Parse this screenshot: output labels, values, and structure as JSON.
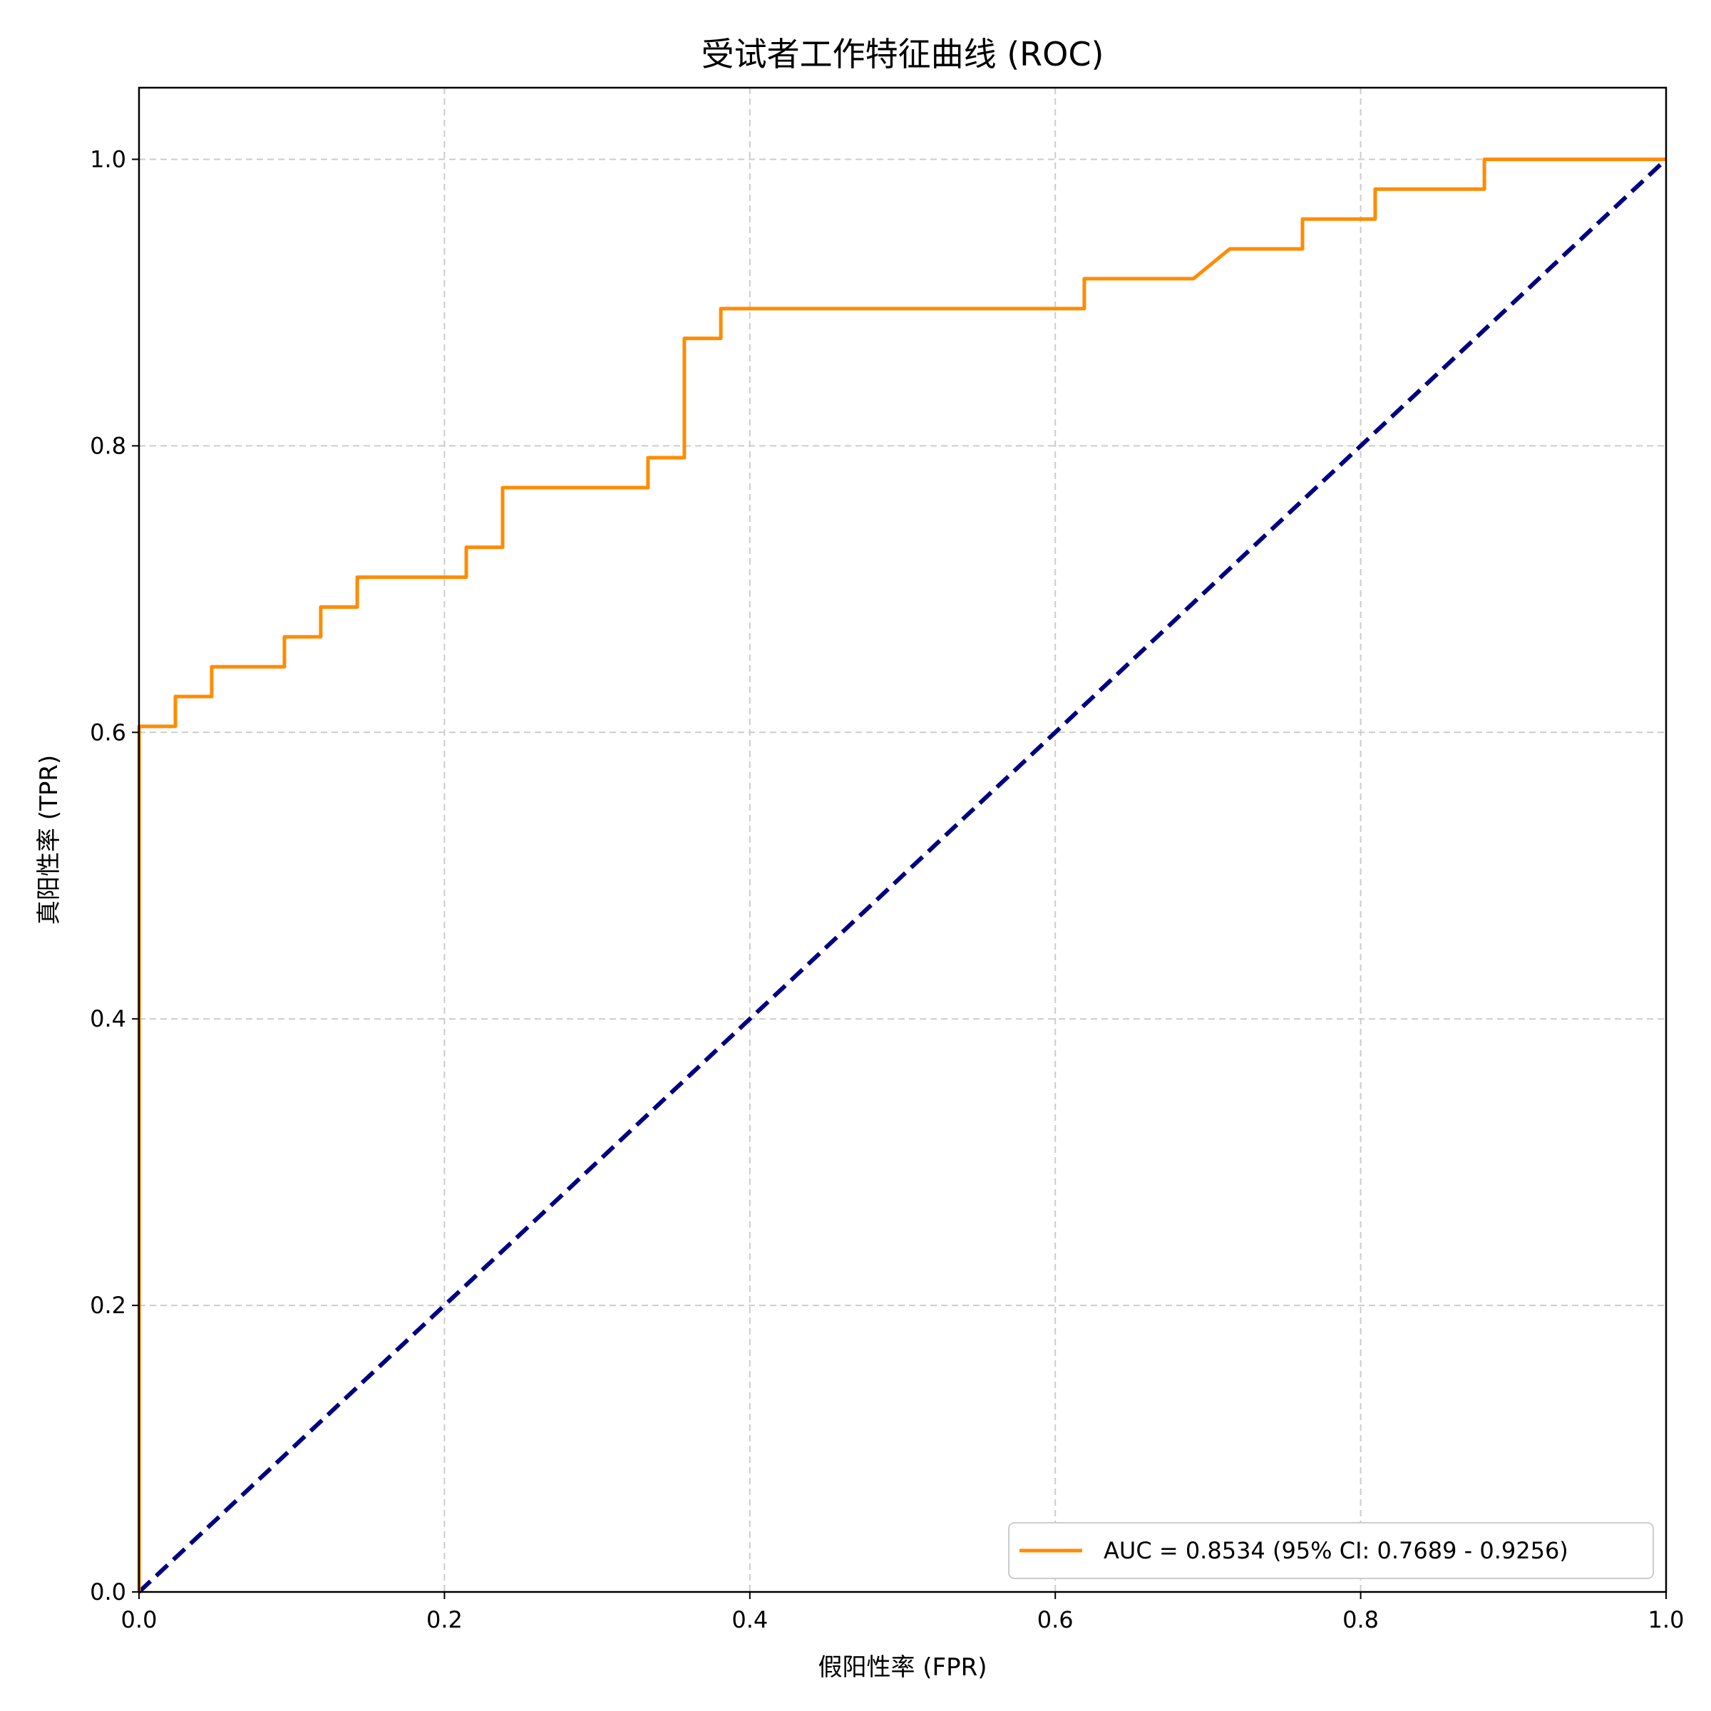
{
  "chart_data": {
    "type": "line",
    "title": "受试者工作特征曲线 (ROC)",
    "xlabel": "假阳性率 (FPR)",
    "ylabel": "真阳性率 (TPR)",
    "xlim": [
      0.0,
      1.0
    ],
    "ylim": [
      0.0,
      1.05
    ],
    "xticks": [
      "0.0",
      "0.2",
      "0.4",
      "0.6",
      "0.8",
      "1.0"
    ],
    "yticks": [
      "0.0",
      "0.2",
      "0.4",
      "0.6",
      "0.8",
      "1.0"
    ],
    "grid": true,
    "legend_position": "lower-right",
    "series": [
      {
        "name": "AUC = 0.8534 (95% CI: 0.7689 - 0.9256)",
        "color": "#ff8c00",
        "style": "solid",
        "x": [
          0.0,
          0.0,
          0.0238,
          0.0238,
          0.0476,
          0.0476,
          0.0952,
          0.0952,
          0.119,
          0.119,
          0.1429,
          0.1429,
          0.2143,
          0.2143,
          0.2381,
          0.2381,
          0.3333,
          0.3333,
          0.3571,
          0.3571,
          0.381,
          0.381,
          0.619,
          0.619,
          0.6905,
          0.7143,
          0.7619,
          0.7619,
          0.8095,
          0.8095,
          0.881,
          0.881,
          1.0
        ],
        "y": [
          0.0,
          0.6042,
          0.6042,
          0.625,
          0.625,
          0.6458,
          0.6458,
          0.6667,
          0.6667,
          0.6875,
          0.6875,
          0.7083,
          0.7083,
          0.7292,
          0.7292,
          0.7708,
          0.7708,
          0.7917,
          0.7917,
          0.875,
          0.875,
          0.8958,
          0.8958,
          0.9167,
          0.9167,
          0.9375,
          0.9375,
          0.9583,
          0.9583,
          0.9792,
          0.9792,
          1.0,
          1.0
        ]
      },
      {
        "name": "",
        "color": "#000080",
        "style": "dashed",
        "x": [
          0.0,
          1.0
        ],
        "y": [
          0.0,
          1.0
        ]
      }
    ]
  }
}
